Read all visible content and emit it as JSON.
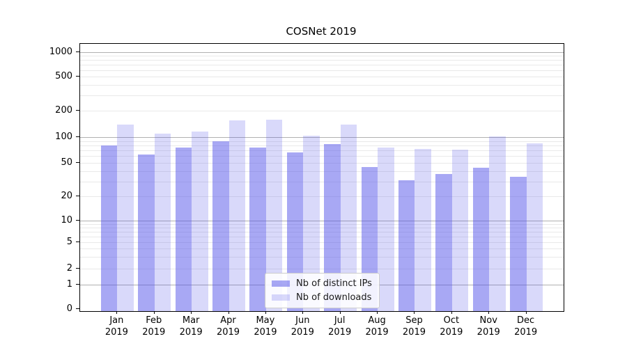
{
  "title": "COSNet 2019",
  "chart_data": {
    "type": "bar",
    "title": "COSNet 2019",
    "categories": [
      "Jan 2019",
      "Feb 2019",
      "Mar 2019",
      "Apr 2019",
      "May 2019",
      "Jun 2019",
      "Jul 2019",
      "Aug 2019",
      "Sep 2019",
      "Oct 2019",
      "Nov 2019",
      "Dec 2019"
    ],
    "month_labels": [
      "Jan",
      "Feb",
      "Mar",
      "Apr",
      "May",
      "Jun",
      "Jul",
      "Aug",
      "Sep",
      "Oct",
      "Nov",
      "Dec"
    ],
    "year_label": "2019",
    "series": [
      {
        "name": "Nb of distinct IPs",
        "color": "rgba(82,82,233,0.50)",
        "values": [
          80,
          63,
          75,
          90,
          76,
          66,
          83,
          45,
          31,
          37,
          44,
          34
        ]
      },
      {
        "name": "Nb of downloads",
        "color": "rgba(82,82,233,0.22)",
        "values": [
          140,
          110,
          116,
          155,
          158,
          103,
          140,
          76,
          73,
          72,
          102,
          84
        ]
      }
    ],
    "yscale": "symlog",
    "ylim": [
      0,
      1259
    ],
    "yticks": [
      0,
      1,
      2,
      5,
      10,
      20,
      50,
      100,
      200,
      500,
      1000
    ],
    "ytick_labels": [
      "0",
      "1",
      "2",
      "5",
      "10",
      "20",
      "50",
      "100",
      "200",
      "500",
      "1000"
    ],
    "minor_gridlines": [
      2,
      3,
      4,
      5,
      6,
      7,
      8,
      9,
      20,
      30,
      40,
      50,
      60,
      70,
      80,
      90,
      200,
      300,
      400,
      500,
      600,
      700,
      800,
      900
    ],
    "major_gridlines": [
      1,
      10,
      100,
      1000
    ],
    "xlabel": "",
    "ylabel": "",
    "grid": true,
    "legend_position": "lower center"
  },
  "colors": {
    "grid_major": "#b0b0b0",
    "grid_minor": "#e9e9e9",
    "spine": "#000000",
    "text": "#000000",
    "legend_border": "#cccccc",
    "background": "#ffffff"
  }
}
